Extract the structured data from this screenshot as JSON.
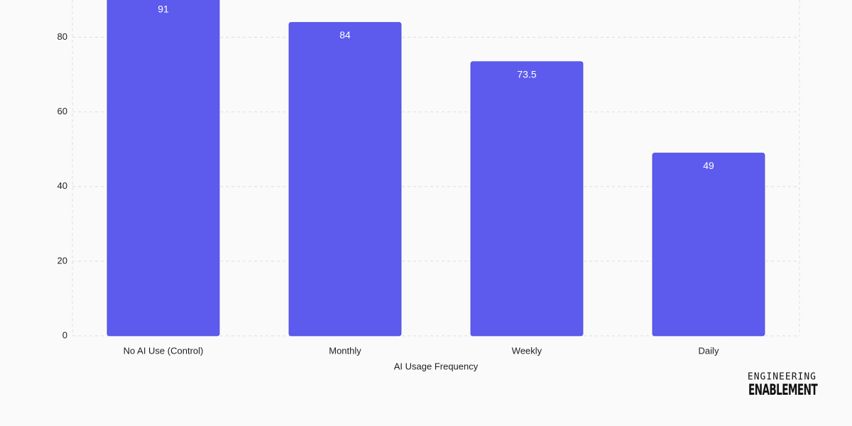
{
  "chart_data": {
    "type": "bar",
    "x_label": "AI Usage Frequency",
    "categories": [
      "No AI Use (Control)",
      "Monthly",
      "Weekly",
      "Daily"
    ],
    "values": [
      91,
      84,
      73.5,
      49
    ],
    "color": "#5d5bed",
    "ylim": [
      0,
      90
    ],
    "yticks": [
      0,
      20,
      40,
      60,
      80
    ],
    "grid": true
  },
  "logo": {
    "line1": "ENGINEERING",
    "line2": "ENABLEMENT"
  }
}
